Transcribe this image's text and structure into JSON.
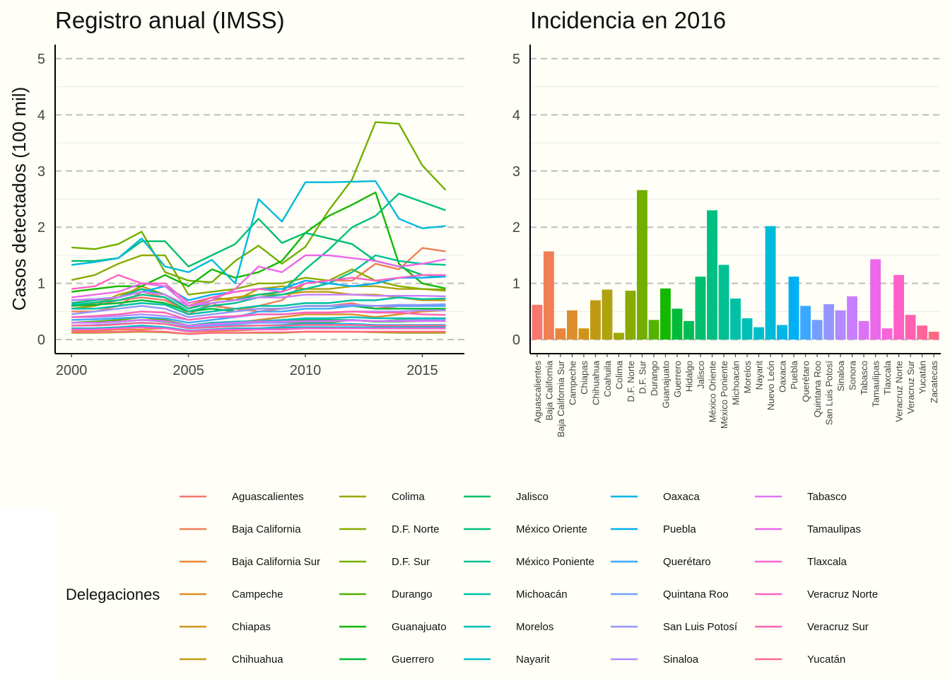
{
  "chart_data": [
    {
      "type": "line",
      "title": "Registro anual (IMSS)",
      "xlabel": "",
      "ylabel": "Casos detectados (100 mil)",
      "xlim": [
        1999.3,
        2016.8
      ],
      "ylim": [
        -0.25,
        5.25
      ],
      "x_ticks": [
        "2000",
        "2005",
        "2010",
        "2015"
      ],
      "y_ticks": [
        "0",
        "1",
        "2",
        "3",
        "4",
        "5"
      ],
      "grid": "horizontal dashed major, light minor",
      "x": [
        2000,
        2001,
        2002,
        2003,
        2004,
        2005,
        2006,
        2007,
        2008,
        2009,
        2010,
        2011,
        2012,
        2013,
        2014,
        2015,
        2016
      ],
      "series": [
        {
          "name": "Aguascalientes",
          "color": "#F8766D",
          "values": [
            0.55,
            0.6,
            0.7,
            0.75,
            0.7,
            0.5,
            0.6,
            0.55,
            0.5,
            0.55,
            0.6,
            0.6,
            0.65,
            0.55,
            0.6,
            0.6,
            0.62
          ]
        },
        {
          "name": "Baja California",
          "color": "#F07F55",
          "values": [
            0.5,
            0.5,
            0.6,
            0.85,
            0.75,
            0.45,
            0.65,
            0.5,
            0.6,
            0.7,
            1.0,
            1.05,
            1.05,
            1.35,
            1.25,
            1.63,
            1.57
          ]
        },
        {
          "name": "Baja California Sur",
          "color": "#E8853A",
          "values": [
            0.15,
            0.15,
            0.18,
            0.18,
            0.2,
            0.14,
            0.15,
            0.16,
            0.18,
            0.18,
            0.2,
            0.2,
            0.22,
            0.2,
            0.2,
            0.2,
            0.2
          ]
        },
        {
          "name": "Campeche",
          "color": "#DD8D29",
          "values": [
            0.3,
            0.3,
            0.32,
            0.35,
            0.35,
            0.25,
            0.3,
            0.3,
            0.35,
            0.4,
            0.45,
            0.45,
            0.45,
            0.4,
            0.45,
            0.5,
            0.52
          ]
        },
        {
          "name": "Chiapas",
          "color": "#D09418",
          "values": [
            0.2,
            0.2,
            0.22,
            0.25,
            0.22,
            0.15,
            0.18,
            0.2,
            0.2,
            0.2,
            0.22,
            0.22,
            0.22,
            0.2,
            0.2,
            0.2,
            0.2
          ]
        },
        {
          "name": "Chihuahua",
          "color": "#C09B12",
          "values": [
            0.6,
            0.65,
            0.75,
            0.95,
            0.8,
            0.55,
            0.7,
            0.75,
            0.8,
            0.8,
            0.85,
            0.85,
            0.8,
            0.8,
            0.75,
            0.7,
            0.7
          ]
        },
        {
          "name": "Coahuila",
          "color": "#AFA20E",
          "values": [
            0.55,
            0.6,
            0.8,
            0.9,
            0.8,
            0.6,
            0.75,
            0.7,
            0.9,
            0.95,
            0.9,
            0.9,
            0.95,
            0.95,
            0.9,
            0.9,
            0.89
          ]
        },
        {
          "name": "Colima",
          "color": "#9CA700",
          "values": [
            0.12,
            0.12,
            0.13,
            0.14,
            0.13,
            0.1,
            0.12,
            0.12,
            0.12,
            0.12,
            0.14,
            0.14,
            0.14,
            0.13,
            0.12,
            0.12,
            0.12
          ]
        },
        {
          "name": "D.F. Norte",
          "color": "#88AB00",
          "values": [
            1.06,
            1.15,
            1.35,
            1.5,
            1.5,
            0.8,
            0.85,
            0.9,
            1.0,
            1.0,
            1.1,
            1.05,
            1.25,
            1.05,
            0.95,
            0.9,
            0.87
          ]
        },
        {
          "name": "D.F. Sur",
          "color": "#72AF00",
          "values": [
            1.64,
            1.61,
            1.7,
            1.92,
            1.2,
            1.05,
            1.02,
            1.4,
            1.67,
            1.35,
            1.65,
            2.3,
            2.85,
            3.87,
            3.84,
            3.1,
            2.66
          ]
        },
        {
          "name": "Durango",
          "color": "#53B400",
          "values": [
            0.3,
            0.32,
            0.35,
            0.4,
            0.35,
            0.25,
            0.3,
            0.3,
            0.3,
            0.3,
            0.3,
            0.3,
            0.35,
            0.32,
            0.35,
            0.35,
            0.35
          ]
        },
        {
          "name": "Guanajuato",
          "color": "#14B800",
          "values": [
            0.85,
            0.9,
            0.95,
            0.95,
            1.15,
            0.95,
            1.25,
            1.1,
            1.2,
            1.4,
            1.9,
            2.2,
            2.4,
            2.62,
            1.35,
            1.0,
            0.91
          ]
        },
        {
          "name": "Guerrero",
          "color": "#00BA38",
          "values": [
            0.6,
            0.62,
            0.65,
            0.7,
            0.65,
            0.5,
            0.55,
            0.5,
            0.55,
            0.55,
            0.6,
            0.6,
            0.6,
            0.55,
            0.55,
            0.55,
            0.55
          ]
        },
        {
          "name": "Hidalgo",
          "color": "#00BC55",
          "values": [
            0.3,
            0.3,
            0.32,
            0.35,
            0.32,
            0.25,
            0.3,
            0.3,
            0.32,
            0.32,
            0.35,
            0.35,
            0.35,
            0.32,
            0.32,
            0.33,
            0.33
          ]
        },
        {
          "name": "Jalisco",
          "color": "#00BE6C",
          "values": [
            1.4,
            1.4,
            1.45,
            1.75,
            1.75,
            1.3,
            1.5,
            1.7,
            2.15,
            1.72,
            1.9,
            1.8,
            1.7,
            1.4,
            1.3,
            1.15,
            1.12
          ]
        },
        {
          "name": "México Oriente",
          "color": "#00BF80",
          "values": [
            0.65,
            0.7,
            0.75,
            0.9,
            0.8,
            0.55,
            0.65,
            0.7,
            0.8,
            0.85,
            1.25,
            1.6,
            2.0,
            2.2,
            2.6,
            2.45,
            2.3
          ]
        },
        {
          "name": "México Poniente",
          "color": "#00C093",
          "values": [
            0.62,
            0.66,
            0.7,
            0.8,
            0.75,
            0.5,
            0.6,
            0.65,
            0.75,
            0.8,
            0.9,
            1.0,
            1.2,
            1.5,
            1.4,
            1.35,
            1.33
          ]
        },
        {
          "name": "Michoacán",
          "color": "#00C0A6",
          "values": [
            0.55,
            0.55,
            0.6,
            0.65,
            0.62,
            0.45,
            0.5,
            0.55,
            0.6,
            0.6,
            0.65,
            0.65,
            0.7,
            0.7,
            0.75,
            0.72,
            0.73
          ]
        },
        {
          "name": "Morelos",
          "color": "#00BFB8",
          "values": [
            0.3,
            0.3,
            0.32,
            0.35,
            0.33,
            0.25,
            0.3,
            0.32,
            0.33,
            0.35,
            0.38,
            0.38,
            0.4,
            0.38,
            0.38,
            0.38,
            0.38
          ]
        },
        {
          "name": "Nayarit",
          "color": "#00BDC9",
          "values": [
            0.2,
            0.2,
            0.22,
            0.25,
            0.22,
            0.16,
            0.18,
            0.2,
            0.2,
            0.22,
            0.22,
            0.22,
            0.22,
            0.22,
            0.22,
            0.22,
            0.22
          ]
        },
        {
          "name": "Nuevo León",
          "color": "#00BADA",
          "values": [
            1.33,
            1.38,
            1.45,
            1.8,
            1.3,
            1.2,
            1.42,
            1.0,
            2.5,
            2.1,
            2.8,
            2.8,
            2.81,
            2.82,
            2.15,
            1.98,
            2.02
          ]
        },
        {
          "name": "Oaxaca",
          "color": "#00B5E9",
          "values": [
            0.25,
            0.25,
            0.28,
            0.3,
            0.28,
            0.2,
            0.22,
            0.25,
            0.25,
            0.26,
            0.28,
            0.28,
            0.28,
            0.26,
            0.26,
            0.26,
            0.26
          ]
        },
        {
          "name": "Puebla",
          "color": "#00AFF6",
          "values": [
            0.7,
            0.72,
            0.75,
            0.85,
            0.95,
            0.7,
            0.8,
            0.85,
            0.9,
            0.9,
            1.05,
            1.0,
            0.95,
            1.0,
            1.1,
            1.1,
            1.12
          ]
        },
        {
          "name": "Querétaro",
          "color": "#3AA8FF",
          "values": [
            0.35,
            0.36,
            0.38,
            0.4,
            0.38,
            0.3,
            0.35,
            0.4,
            0.5,
            0.5,
            0.55,
            0.55,
            0.6,
            0.6,
            0.6,
            0.6,
            0.6
          ]
        },
        {
          "name": "Quintana Roo",
          "color": "#729FFF",
          "values": [
            0.25,
            0.26,
            0.28,
            0.3,
            0.28,
            0.22,
            0.25,
            0.28,
            0.3,
            0.3,
            0.32,
            0.32,
            0.35,
            0.33,
            0.34,
            0.35,
            0.35
          ]
        },
        {
          "name": "San Luis Potosí",
          "color": "#9496FF",
          "values": [
            0.45,
            0.5,
            0.55,
            0.6,
            0.55,
            0.4,
            0.45,
            0.5,
            0.55,
            0.55,
            0.6,
            0.6,
            0.62,
            0.6,
            0.62,
            0.62,
            0.63
          ]
        },
        {
          "name": "Sinaloa",
          "color": "#B18BFF",
          "values": [
            0.4,
            0.4,
            0.42,
            0.45,
            0.42,
            0.35,
            0.4,
            0.4,
            0.45,
            0.45,
            0.48,
            0.48,
            0.5,
            0.5,
            0.5,
            0.52,
            0.52
          ]
        },
        {
          "name": "Sonora",
          "color": "#C87FFF",
          "values": [
            0.7,
            0.72,
            0.75,
            0.85,
            0.8,
            0.6,
            0.65,
            0.7,
            0.75,
            0.75,
            0.8,
            0.8,
            0.8,
            0.78,
            0.78,
            0.78,
            0.77
          ]
        },
        {
          "name": "Tabasco",
          "color": "#DC72F7",
          "values": [
            0.3,
            0.3,
            0.32,
            0.35,
            0.33,
            0.25,
            0.28,
            0.3,
            0.32,
            0.32,
            0.33,
            0.33,
            0.34,
            0.33,
            0.33,
            0.33,
            0.33
          ]
        },
        {
          "name": "Tamaulipas",
          "color": "#EB69EA",
          "values": [
            0.75,
            0.8,
            0.85,
            1.0,
            0.95,
            0.6,
            0.7,
            0.9,
            1.3,
            1.2,
            1.5,
            1.5,
            1.45,
            1.4,
            1.3,
            1.35,
            1.43
          ]
        },
        {
          "name": "Tlaxcala",
          "color": "#F863DA",
          "values": [
            0.18,
            0.18,
            0.2,
            0.22,
            0.2,
            0.15,
            0.17,
            0.18,
            0.18,
            0.18,
            0.2,
            0.2,
            0.2,
            0.2,
            0.2,
            0.2,
            0.2
          ]
        },
        {
          "name": "Veracruz Norte",
          "color": "#FF61C8",
          "values": [
            0.9,
            0.95,
            1.15,
            1.0,
            1.0,
            0.65,
            0.75,
            0.85,
            0.9,
            0.85,
            1.0,
            1.05,
            1.1,
            1.05,
            1.1,
            1.15,
            1.15
          ]
        },
        {
          "name": "Veracruz Sur",
          "color": "#FF62B2",
          "values": [
            0.4,
            0.42,
            0.45,
            0.5,
            0.48,
            0.35,
            0.4,
            0.42,
            0.45,
            0.45,
            0.48,
            0.48,
            0.5,
            0.48,
            0.48,
            0.45,
            0.44
          ]
        },
        {
          "name": "Yucatán",
          "color": "#FF659B",
          "values": [
            0.25,
            0.25,
            0.27,
            0.3,
            0.28,
            0.2,
            0.22,
            0.24,
            0.25,
            0.25,
            0.26,
            0.26,
            0.26,
            0.25,
            0.25,
            0.25,
            0.25
          ]
        },
        {
          "name": "Zacatecas",
          "color": "#FF6A82",
          "values": [
            0.13,
            0.13,
            0.14,
            0.15,
            0.14,
            0.1,
            0.12,
            0.12,
            0.13,
            0.13,
            0.14,
            0.14,
            0.14,
            0.14,
            0.14,
            0.14,
            0.14
          ]
        }
      ]
    },
    {
      "type": "bar",
      "title": "Incidencia en 2016",
      "xlabel": "",
      "ylabel": "",
      "ylim": [
        -0.25,
        5.25
      ],
      "y_ticks": [
        "0",
        "1",
        "2",
        "3",
        "4",
        "5"
      ],
      "grid": "horizontal dashed major, light minor",
      "categories": [
        "Aguascalientes",
        "Baja California",
        "Baja California Sur",
        "Campeche",
        "Chiapas",
        "Chihuahua",
        "Coahuila",
        "Colima",
        "D.F. Norte",
        "D.F. Sur",
        "Durango",
        "Guanajuato",
        "Guerrero",
        "Hidalgo",
        "Jalisco",
        "México Oriente",
        "México Poniente",
        "Michoacán",
        "Morelos",
        "Nayarit",
        "Nuevo León",
        "Oaxaca",
        "Puebla",
        "Querétaro",
        "Quintana Roo",
        "San Luis Potosí",
        "Sinaloa",
        "Sonora",
        "Tabasco",
        "Tamaulipas",
        "Tlaxcala",
        "Veracruz Norte",
        "Veracruz Sur",
        "Yucatán",
        "Zacatecas"
      ],
      "values": [
        0.62,
        1.57,
        0.2,
        0.52,
        0.2,
        0.7,
        0.89,
        0.12,
        0.87,
        2.66,
        0.35,
        0.91,
        0.55,
        0.33,
        1.12,
        2.3,
        1.33,
        0.73,
        0.38,
        0.22,
        2.02,
        0.26,
        1.12,
        0.6,
        0.35,
        0.63,
        0.52,
        0.77,
        0.33,
        1.43,
        0.2,
        1.15,
        0.44,
        0.25,
        0.14
      ],
      "colors": [
        "#F8766D",
        "#F07F55",
        "#E8853A",
        "#DD8D29",
        "#D09418",
        "#C09B12",
        "#AFA20E",
        "#9CA700",
        "#88AB00",
        "#72AF00",
        "#53B400",
        "#14B800",
        "#00BA38",
        "#00BC55",
        "#00BE6C",
        "#00BF80",
        "#00C093",
        "#00C0A6",
        "#00BFB8",
        "#00BDC9",
        "#00BADA",
        "#00B5E9",
        "#00AFF6",
        "#3AA8FF",
        "#729FFF",
        "#9496FF",
        "#B18BFF",
        "#C87FFF",
        "#DC72F7",
        "#EB69EA",
        "#F863DA",
        "#FF61C8",
        "#FF62B2",
        "#FF659B",
        "#FF6A82"
      ]
    }
  ],
  "legend": {
    "title": "Delegaciones",
    "items": [
      "Aguascalientes",
      "Baja California",
      "Baja California Sur",
      "Campeche",
      "Chiapas",
      "Chihuahua",
      "Colima",
      "D.F. Norte",
      "D.F. Sur",
      "Durango",
      "Guanajuato",
      "Guerrero",
      "Jalisco",
      "México Oriente",
      "México Poniente",
      "Michoacán",
      "Morelos",
      "Nayarit",
      "Oaxaca",
      "Puebla",
      "Querétaro",
      "Quintana Roo",
      "San Luis Potosí",
      "Sinaloa",
      "Tabasco",
      "Tamaulipas",
      "Tlaxcala",
      "Veracruz Norte",
      "Veracruz Sur",
      "Yucatán"
    ],
    "colors": [
      "#F8766D",
      "#F07F55",
      "#E8853A",
      "#DD8D29",
      "#D09418",
      "#C09B12",
      "#9CA700",
      "#88AB00",
      "#72AF00",
      "#53B400",
      "#14B800",
      "#00BA38",
      "#00BE6C",
      "#00BF80",
      "#00C093",
      "#00C0A6",
      "#00BFB8",
      "#00BDC9",
      "#00B5E9",
      "#00AFF6",
      "#3AA8FF",
      "#729FFF",
      "#9496FF",
      "#B18BFF",
      "#DC72F7",
      "#EB69EA",
      "#F863DA",
      "#FF61C8",
      "#FF62B2",
      "#FF659B"
    ]
  }
}
